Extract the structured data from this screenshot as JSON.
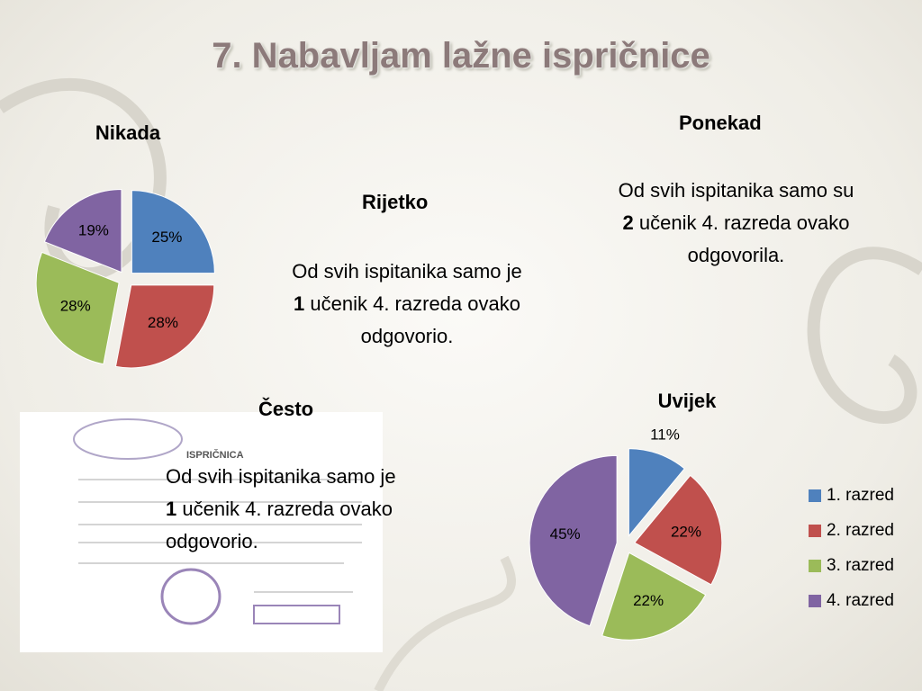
{
  "title": "7. Nabavljam lažne ispričnice",
  "notes": [
    {
      "heading": "Rijetko",
      "before": "Od svih ispitanika samo je",
      "count": 1,
      "after": "učenik 4. razreda ovako odgovorio."
    },
    {
      "heading": "Ponekad",
      "before": "Od svih ispitanika samo su",
      "count": 2,
      "after": "učenik 4. razreda ovako odgovorila."
    },
    {
      "heading": "Često",
      "before": "Od svih ispitanika samo je",
      "count": 1,
      "after": "učenik 4. razreda ovako odgovorio."
    }
  ],
  "image": {
    "caption": "ISPRIČNICA"
  },
  "chart_data": [
    {
      "type": "pie",
      "title": "Nikada",
      "values": [
        25,
        28,
        28,
        19
      ],
      "value_labels": [
        "25%",
        "28%",
        "28%",
        "19%"
      ],
      "colors": [
        "#4f81bd",
        "#c0504d",
        "#9bbb59",
        "#8064a2"
      ]
    },
    {
      "type": "pie",
      "title": "Uvijek",
      "categories": [
        "1. razred",
        "2. razred",
        "3. razred",
        "4. razred"
      ],
      "values": [
        11,
        22,
        22,
        45
      ],
      "value_labels": [
        "11%",
        "22%",
        "22%",
        "45%"
      ],
      "colors": [
        "#4f81bd",
        "#c0504d",
        "#9bbb59",
        "#8064a2"
      ],
      "legend": "right"
    }
  ]
}
